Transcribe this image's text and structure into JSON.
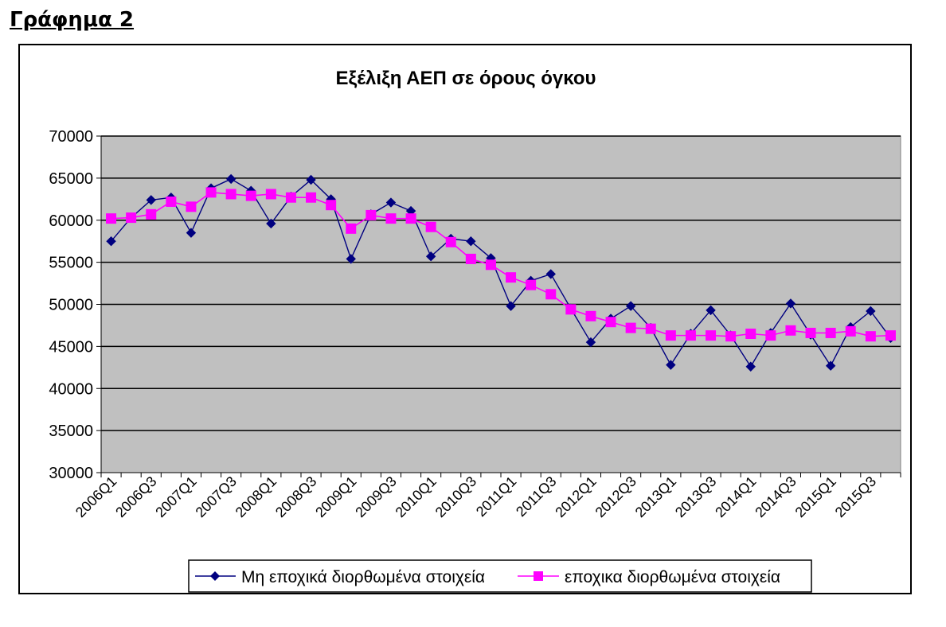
{
  "page": {
    "heading": "Γράφημα 2"
  },
  "chart_data": {
    "type": "line",
    "title": "Εξέλιξη ΑΕΠ σε όρους όγκου",
    "xlabel": "",
    "ylabel": "",
    "ylim": [
      30000,
      70000
    ],
    "yticks": [
      30000,
      35000,
      40000,
      45000,
      50000,
      55000,
      60000,
      65000,
      70000
    ],
    "ytick_labels": [
      "30000",
      "35000",
      "40000",
      "45000",
      "50000",
      "55000",
      "60000",
      "65000",
      "70000"
    ],
    "grid": true,
    "legend_position": "bottom",
    "categories": [
      "2006Q1",
      "2006Q2",
      "2006Q3",
      "2006Q4",
      "2007Q1",
      "2007Q2",
      "2007Q3",
      "2007Q4",
      "2008Q1",
      "2008Q2",
      "2008Q3",
      "2008Q4",
      "2009Q1",
      "2009Q2",
      "2009Q3",
      "2009Q4",
      "2010Q1",
      "2010Q2",
      "2010Q3",
      "2010Q4",
      "2011Q1",
      "2011Q2",
      "2011Q3",
      "2011Q4",
      "2012Q1",
      "2012Q2",
      "2012Q3",
      "2012Q4",
      "2013Q1",
      "2013Q2",
      "2013Q3",
      "2013Q4",
      "2014Q1",
      "2014Q2",
      "2014Q3",
      "2014Q4",
      "2015Q1",
      "2015Q2",
      "2015Q3",
      "2015Q4"
    ],
    "x_tick_labels": [
      "2006Q1",
      "2006Q3",
      "2007Q1",
      "2007Q3",
      "2008Q1",
      "2008Q3",
      "2009Q1",
      "2009Q3",
      "2010Q1",
      "2010Q3",
      "2011Q1",
      "2011Q3",
      "2012Q1",
      "2012Q3",
      "2013Q1",
      "2013Q3",
      "2014Q1",
      "2014Q3",
      "2015Q1",
      "2015Q3"
    ],
    "series": [
      {
        "name": "Μη εποχικά διορθωμένα στοιχεία",
        "color": "#000080",
        "marker": "diamond",
        "values": [
          57500,
          60300,
          62400,
          62700,
          58500,
          63800,
          64900,
          63500,
          59600,
          62800,
          64800,
          62500,
          55400,
          60700,
          62100,
          61100,
          55700,
          57800,
          57500,
          55500,
          49800,
          52800,
          53600,
          49500,
          45500,
          48300,
          49800,
          47200,
          42800,
          46500,
          49300,
          46300,
          42600,
          46600,
          50100,
          46400,
          42700,
          47300,
          49200,
          46000
        ]
      },
      {
        "name": "εποχικα διορθωμένα στοιχεία",
        "color": "#ff00ff",
        "marker": "square",
        "values": [
          60200,
          60300,
          60700,
          62200,
          61600,
          63300,
          63100,
          62900,
          63100,
          62700,
          62700,
          61800,
          59000,
          60600,
          60200,
          60200,
          59200,
          57400,
          55400,
          54700,
          53200,
          52300,
          51200,
          49400,
          48600,
          47900,
          47200,
          47100,
          46300,
          46300,
          46300,
          46200,
          46500,
          46300,
          46900,
          46600,
          46600,
          46800,
          46200,
          46300
        ]
      }
    ]
  }
}
